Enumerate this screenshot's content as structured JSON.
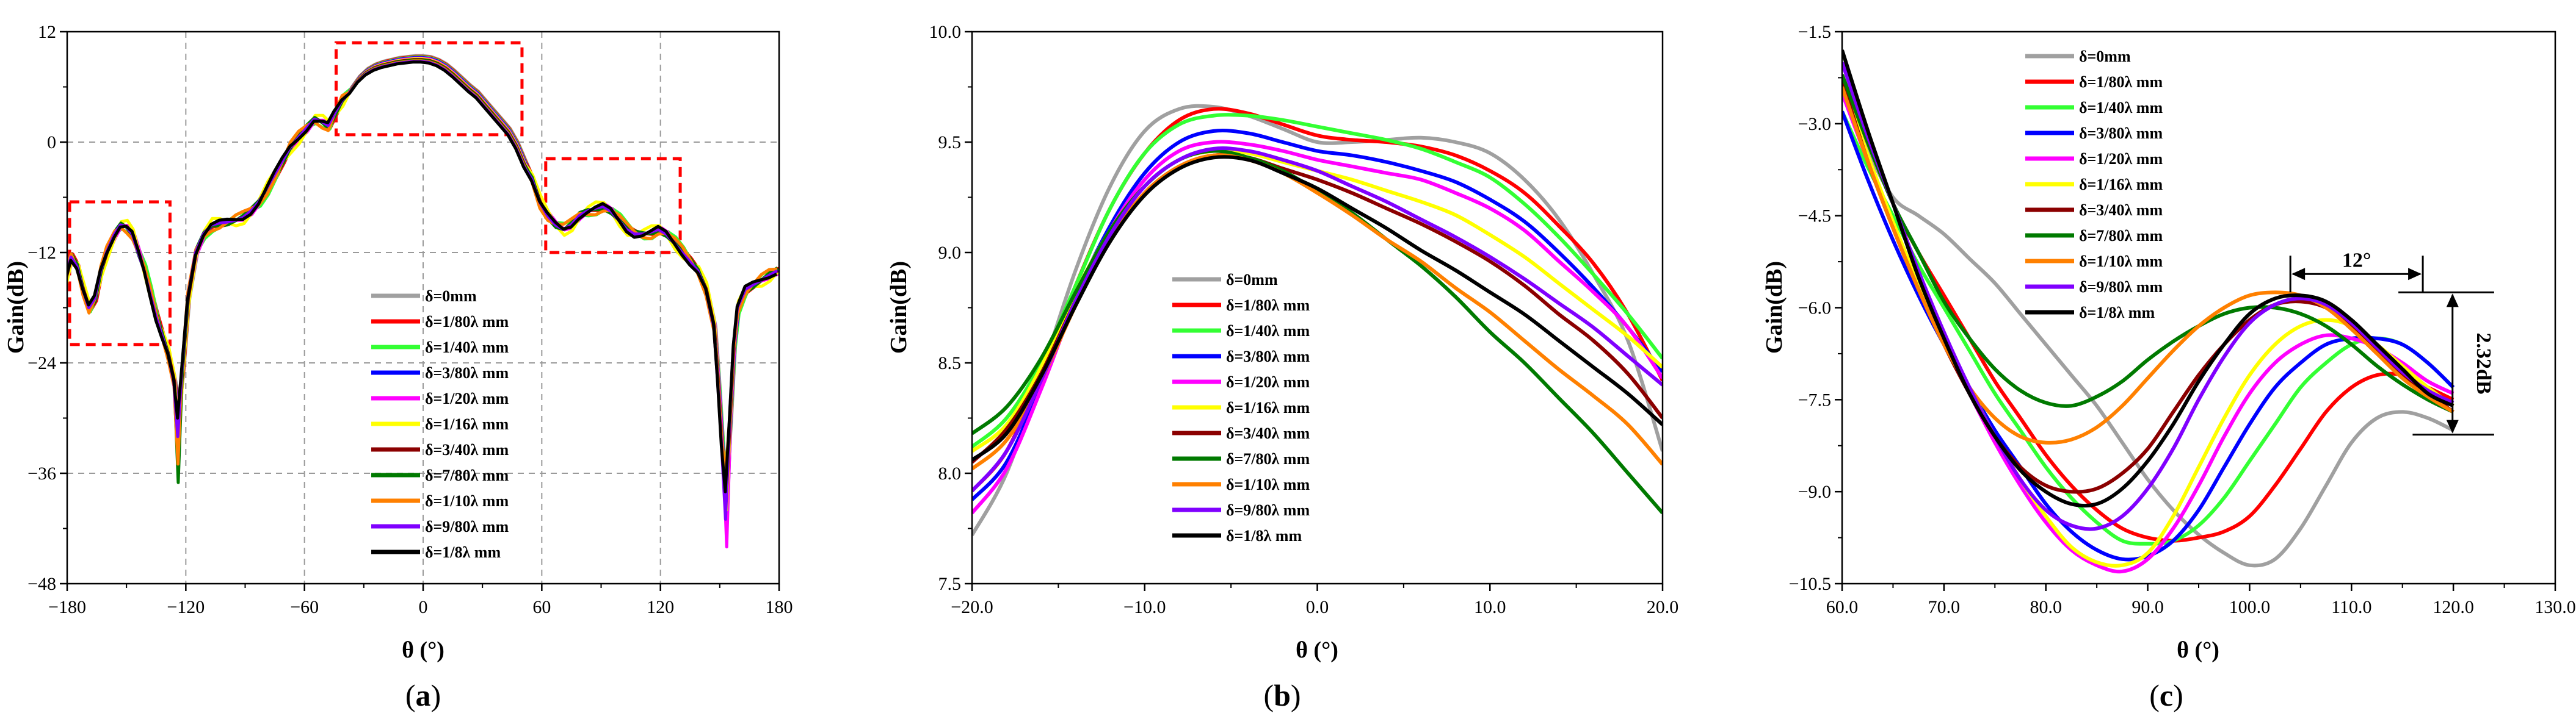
{
  "series_names": [
    "δ=0mm",
    "δ=1/80λ mm",
    "δ=1/40λ mm",
    "δ=3/80λ mm",
    "δ=1/20λ mm",
    "δ=1/16λ mm",
    "δ=3/40λ mm",
    "δ=7/80λ mm",
    "δ=1/10λ mm",
    "δ=9/80λ mm",
    "δ=1/8λ mm"
  ],
  "series_colors": [
    "#a0a0a0",
    "#ff0000",
    "#33ff33",
    "#0000ff",
    "#ff00ff",
    "#ffff00",
    "#8b0000",
    "#007a00",
    "#ff8000",
    "#8000ff",
    "#000000"
  ],
  "highlight_color": "#ff0000",
  "chart_data": [
    {
      "type": "line",
      "panel": "(a)",
      "panel_letter": "a",
      "xlabel": "θ (°)",
      "ylabel": "Gain(dB)",
      "xlim": [
        -180,
        180
      ],
      "ylim": [
        -48,
        12
      ],
      "xticks": [
        -180,
        -120,
        -60,
        0,
        60,
        120,
        180
      ],
      "yticks": [
        -48,
        -36,
        -24,
        -12,
        0,
        12
      ],
      "grid": true,
      "legend_position": "lower-center",
      "base_curve": {
        "x": [
          -180,
          -177,
          -174,
          -171,
          -168,
          -165,
          -162,
          -159,
          -155,
          -152,
          -149,
          -146,
          -143,
          -140,
          -137,
          -134,
          -131,
          -128,
          -125,
          -123,
          -121,
          -118,
          -114,
          -110,
          -106,
          -102,
          -98,
          -94,
          -90,
          -86,
          -82,
          -78,
          -74,
          -70,
          -66,
          -62,
          -58,
          -54,
          -50,
          -47,
          -44,
          -40,
          -36,
          -32,
          -28,
          -24,
          -20,
          -16,
          -12,
          -8,
          -4,
          0,
          4,
          8,
          12,
          16,
          20,
          24,
          28,
          32,
          36,
          40,
          44,
          48,
          52,
          56,
          60,
          64,
          68,
          72,
          76,
          80,
          84,
          88,
          92,
          96,
          100,
          104,
          108,
          112,
          116,
          120,
          124,
          128,
          132,
          136,
          140,
          144,
          148,
          150,
          152,
          154,
          156,
          158,
          160,
          164,
          168,
          172,
          176,
          180
        ],
        "y": [
          -15,
          -12.5,
          -13.5,
          -16,
          -18,
          -17,
          -14,
          -12,
          -10,
          -9,
          -9.2,
          -10,
          -12,
          -14,
          -16.5,
          -19,
          -21,
          -23,
          -26,
          -28.5,
          -25,
          -17,
          -12,
          -10,
          -9,
          -8.8,
          -8.7,
          -8.5,
          -8.2,
          -7.5,
          -6.5,
          -5,
          -3.5,
          -2,
          -0.5,
          0.5,
          1.5,
          2.5,
          2.2,
          1.8,
          3,
          4.5,
          6,
          7.2,
          8,
          8.5,
          8.8,
          9,
          9.2,
          9.3,
          9.4,
          9.4,
          9.3,
          9,
          8.5,
          7.8,
          7,
          6.2,
          5.5,
          4.5,
          3.5,
          2.5,
          1.5,
          0,
          -2,
          -4,
          -6.5,
          -8,
          -9,
          -9.5,
          -9,
          -8,
          -7.5,
          -7.2,
          -7,
          -7.5,
          -8.5,
          -9.5,
          -10,
          -10,
          -9.8,
          -9.5,
          -10,
          -11,
          -12,
          -13,
          -14,
          -16,
          -20,
          -26,
          -33,
          -37,
          -30,
          -22,
          -18,
          -16,
          -15.5,
          -15,
          -14.5,
          -14
        ]
      },
      "dips": [
        {
          "x": -123,
          "y": [
            -28.5,
            -29.5,
            -30.5,
            -31.5,
            -32.5,
            -33.5,
            -34,
            -37,
            -35,
            -32,
            -30
          ]
        },
        {
          "x": 154,
          "y": [
            -37,
            -38,
            -40,
            -42,
            -44,
            -40,
            -39,
            -37,
            -36,
            -41,
            -38
          ]
        }
      ],
      "highlight_boxes": [
        {
          "x": [
            -180,
            -128
          ],
          "y": [
            -22,
            -6.5
          ]
        },
        {
          "x": -44,
          "x_end": 50,
          "y": [
            0.8,
            10.8
          ]
        },
        {
          "x": [
            62,
            130
          ],
          "y": [
            -12,
            -1.8
          ]
        }
      ],
      "x_center_spread": [
        0,
        -0.3,
        -0.6,
        -0.9,
        -1.2,
        -1.5,
        -1.8,
        -2.1,
        -2.4,
        -2.7,
        -3.0
      ]
    },
    {
      "type": "line",
      "panel": "(b)",
      "panel_letter": "b",
      "xlabel": "θ (°)",
      "ylabel": "Gain(dB)",
      "xlim": [
        -20,
        20
      ],
      "ylim": [
        7.5,
        10.0
      ],
      "xticks": [
        -20,
        -10,
        0,
        10,
        20
      ],
      "yticks": [
        7.5,
        8.0,
        8.5,
        9.0,
        9.5,
        10.0
      ],
      "grid": false,
      "legend_position": "lower-center",
      "x": [
        -20,
        -18,
        -16,
        -14,
        -12,
        -10,
        -8,
        -6,
        -4,
        -2,
        0,
        2,
        4,
        6,
        8,
        10,
        12,
        14,
        16,
        18,
        20
      ],
      "series": [
        {
          "name": "δ=0mm",
          "values": [
            7.72,
            8.0,
            8.45,
            8.92,
            9.3,
            9.55,
            9.65,
            9.66,
            9.62,
            9.56,
            9.5,
            9.5,
            9.51,
            9.52,
            9.5,
            9.45,
            9.33,
            9.15,
            8.9,
            8.6,
            8.1
          ]
        },
        {
          "name": "δ=1/80λ mm",
          "values": [
            7.92,
            8.1,
            8.45,
            8.85,
            9.2,
            9.45,
            9.6,
            9.65,
            9.63,
            9.58,
            9.53,
            9.51,
            9.5,
            9.48,
            9.44,
            9.37,
            9.27,
            9.12,
            8.95,
            8.72,
            8.42
          ]
        },
        {
          "name": "δ=1/40λ mm",
          "values": [
            8.12,
            8.25,
            8.5,
            8.85,
            9.2,
            9.45,
            9.58,
            9.62,
            9.62,
            9.6,
            9.57,
            9.54,
            9.51,
            9.47,
            9.41,
            9.34,
            9.22,
            9.07,
            8.9,
            8.72,
            8.52
          ]
        },
        {
          "name": "δ=3/80λ mm",
          "values": [
            7.88,
            8.05,
            8.4,
            8.8,
            9.12,
            9.36,
            9.5,
            9.55,
            9.54,
            9.5,
            9.46,
            9.44,
            9.41,
            9.37,
            9.32,
            9.24,
            9.14,
            9.0,
            8.84,
            8.66,
            8.46
          ]
        },
        {
          "name": "δ=1/20λ mm",
          "values": [
            7.82,
            8.02,
            8.38,
            8.78,
            9.1,
            9.33,
            9.46,
            9.5,
            9.49,
            9.46,
            9.42,
            9.39,
            9.36,
            9.33,
            9.27,
            9.2,
            9.1,
            8.96,
            8.82,
            8.66,
            8.43
          ]
        },
        {
          "name": "δ=1/16λ mm",
          "values": [
            8.1,
            8.22,
            8.48,
            8.82,
            9.1,
            9.3,
            9.42,
            9.46,
            9.45,
            9.41,
            9.37,
            9.33,
            9.28,
            9.23,
            9.17,
            9.08,
            8.98,
            8.86,
            8.74,
            8.62,
            8.48
          ]
        },
        {
          "name": "δ=3/40λ mm",
          "values": [
            8.05,
            8.2,
            8.45,
            8.78,
            9.06,
            9.27,
            9.39,
            9.44,
            9.43,
            9.38,
            9.33,
            9.27,
            9.2,
            9.13,
            9.05,
            8.96,
            8.85,
            8.72,
            8.6,
            8.45,
            8.25
          ]
        },
        {
          "name": "δ=7/80λ mm",
          "values": [
            8.18,
            8.3,
            8.52,
            8.82,
            9.1,
            9.3,
            9.42,
            9.46,
            9.43,
            9.37,
            9.28,
            9.18,
            9.06,
            8.94,
            8.8,
            8.64,
            8.5,
            8.34,
            8.18,
            8.0,
            7.82
          ]
        },
        {
          "name": "δ=1/10λ mm",
          "values": [
            8.02,
            8.15,
            8.42,
            8.76,
            9.06,
            9.27,
            9.39,
            9.44,
            9.42,
            9.36,
            9.27,
            9.17,
            9.06,
            8.96,
            8.84,
            8.73,
            8.6,
            8.47,
            8.35,
            8.22,
            8.04
          ]
        },
        {
          "name": "δ=9/80λ mm",
          "values": [
            7.92,
            8.1,
            8.42,
            8.78,
            9.08,
            9.3,
            9.42,
            9.47,
            9.46,
            9.42,
            9.37,
            9.3,
            9.23,
            9.15,
            9.07,
            8.98,
            8.88,
            8.77,
            8.66,
            8.53,
            8.4
          ]
        },
        {
          "name": "δ=1/8λ mm",
          "values": [
            8.06,
            8.18,
            8.44,
            8.76,
            9.05,
            9.26,
            9.38,
            9.43,
            9.42,
            9.36,
            9.29,
            9.2,
            9.11,
            9.01,
            8.92,
            8.82,
            8.72,
            8.6,
            8.48,
            8.36,
            8.22
          ]
        }
      ]
    },
    {
      "type": "line",
      "panel": "(c)",
      "panel_letter": "c",
      "xlabel": "θ (°)",
      "ylabel": "Gain(dB)",
      "xlim": [
        60,
        130
      ],
      "ylim": [
        -10.5,
        -1.5
      ],
      "xticks": [
        60,
        70,
        80,
        90,
        100,
        110,
        120,
        130
      ],
      "yticks": [
        -10.5,
        -9.0,
        -7.5,
        -6.0,
        -4.5,
        -3.0,
        -1.5
      ],
      "grid": false,
      "legend_position": "top-left",
      "x": [
        60,
        62.5,
        65,
        67.5,
        70,
        72.5,
        75,
        77.5,
        80,
        82.5,
        85,
        87.5,
        90,
        92.5,
        95,
        97.5,
        100,
        102.5,
        105,
        107.5,
        110,
        112.5,
        115,
        117.5,
        120
      ],
      "series": [
        {
          "name": "δ=0mm",
          "values": [
            -2.2,
            -3.4,
            -4.2,
            -4.5,
            -4.8,
            -5.2,
            -5.6,
            -6.1,
            -6.6,
            -7.1,
            -7.6,
            -8.2,
            -8.8,
            -9.3,
            -9.7,
            -10.0,
            -10.2,
            -10.1,
            -9.6,
            -8.9,
            -8.2,
            -7.8,
            -7.7,
            -7.8,
            -8.0
          ]
        },
        {
          "name": "δ=1/80λ mm",
          "values": [
            -2.2,
            -3.3,
            -4.3,
            -5.1,
            -5.8,
            -6.5,
            -7.2,
            -7.8,
            -8.4,
            -8.9,
            -9.3,
            -9.6,
            -9.75,
            -9.8,
            -9.75,
            -9.65,
            -9.4,
            -8.9,
            -8.3,
            -7.7,
            -7.3,
            -7.1,
            -7.1,
            -7.3,
            -7.5
          ]
        },
        {
          "name": "δ=1/40λ mm",
          "values": [
            -2.8,
            -3.7,
            -4.5,
            -5.3,
            -6.0,
            -6.7,
            -7.4,
            -8.0,
            -8.6,
            -9.1,
            -9.5,
            -9.8,
            -9.85,
            -9.8,
            -9.55,
            -9.1,
            -8.5,
            -7.9,
            -7.3,
            -6.9,
            -6.6,
            -6.5,
            -6.6,
            -6.9,
            -7.3
          ]
        },
        {
          "name": "δ=3/80λ mm",
          "values": [
            -2.8,
            -3.9,
            -4.9,
            -5.8,
            -6.6,
            -7.3,
            -8.0,
            -8.6,
            -9.2,
            -9.65,
            -9.95,
            -10.1,
            -10.05,
            -9.8,
            -9.3,
            -8.6,
            -7.9,
            -7.3,
            -6.9,
            -6.6,
            -6.5,
            -6.5,
            -6.6,
            -6.9,
            -7.3
          ]
        },
        {
          "name": "δ=1/20λ mm",
          "values": [
            -2.5,
            -3.6,
            -4.7,
            -5.7,
            -6.6,
            -7.4,
            -8.2,
            -8.9,
            -9.5,
            -9.95,
            -10.2,
            -10.3,
            -10.1,
            -9.6,
            -8.9,
            -8.1,
            -7.4,
            -6.9,
            -6.6,
            -6.45,
            -6.5,
            -6.65,
            -6.9,
            -7.2,
            -7.4
          ]
        },
        {
          "name": "δ=1/16λ mm",
          "values": [
            -2.3,
            -3.5,
            -4.6,
            -5.6,
            -6.5,
            -7.3,
            -8.1,
            -8.8,
            -9.4,
            -9.9,
            -10.15,
            -10.2,
            -10.0,
            -9.4,
            -8.6,
            -7.8,
            -7.1,
            -6.6,
            -6.3,
            -6.2,
            -6.3,
            -6.6,
            -6.95,
            -7.3,
            -7.6
          ]
        },
        {
          "name": "δ=3/40λ mm",
          "values": [
            -2.3,
            -3.6,
            -4.7,
            -5.7,
            -6.6,
            -7.4,
            -8.1,
            -8.6,
            -8.9,
            -9.0,
            -8.95,
            -8.7,
            -8.3,
            -7.7,
            -7.1,
            -6.6,
            -6.2,
            -5.95,
            -5.9,
            -6.0,
            -6.3,
            -6.7,
            -7.1,
            -7.4,
            -7.7
          ]
        },
        {
          "name": "δ=7/80λ mm",
          "values": [
            -2.2,
            -3.3,
            -4.3,
            -5.1,
            -5.9,
            -6.5,
            -7.0,
            -7.35,
            -7.55,
            -7.6,
            -7.45,
            -7.2,
            -6.85,
            -6.55,
            -6.3,
            -6.1,
            -6.0,
            -6.0,
            -6.1,
            -6.3,
            -6.6,
            -6.95,
            -7.25,
            -7.5,
            -7.7
          ]
        },
        {
          "name": "δ=1/10λ mm",
          "values": [
            -2.4,
            -3.6,
            -4.7,
            -5.7,
            -6.6,
            -7.3,
            -7.8,
            -8.1,
            -8.2,
            -8.15,
            -7.95,
            -7.6,
            -7.15,
            -6.7,
            -6.3,
            -6.0,
            -5.8,
            -5.75,
            -5.8,
            -6.0,
            -6.35,
            -6.75,
            -7.15,
            -7.45,
            -7.7
          ]
        },
        {
          "name": "δ=9/80λ mm",
          "values": [
            -2.0,
            -3.2,
            -4.3,
            -5.4,
            -6.4,
            -7.3,
            -8.1,
            -8.8,
            -9.3,
            -9.55,
            -9.6,
            -9.4,
            -8.95,
            -8.3,
            -7.5,
            -6.8,
            -6.25,
            -5.95,
            -5.85,
            -5.95,
            -6.25,
            -6.65,
            -7.05,
            -7.35,
            -7.55
          ]
        },
        {
          "name": "δ=1/8λ mm",
          "values": [
            -1.8,
            -3.1,
            -4.3,
            -5.5,
            -6.5,
            -7.4,
            -8.1,
            -8.65,
            -9.0,
            -9.2,
            -9.2,
            -8.95,
            -8.5,
            -7.9,
            -7.2,
            -6.6,
            -6.1,
            -5.85,
            -5.8,
            -5.9,
            -6.2,
            -6.6,
            -7.0,
            -7.4,
            -7.6
          ]
        }
      ],
      "annotations": [
        {
          "text": "12°",
          "x_start": 104,
          "x_end": 117,
          "y": -5.55
        },
        {
          "text": "2.32dB",
          "x": 118,
          "y_top": -5.75,
          "y_bottom": -8.07
        }
      ]
    }
  ]
}
